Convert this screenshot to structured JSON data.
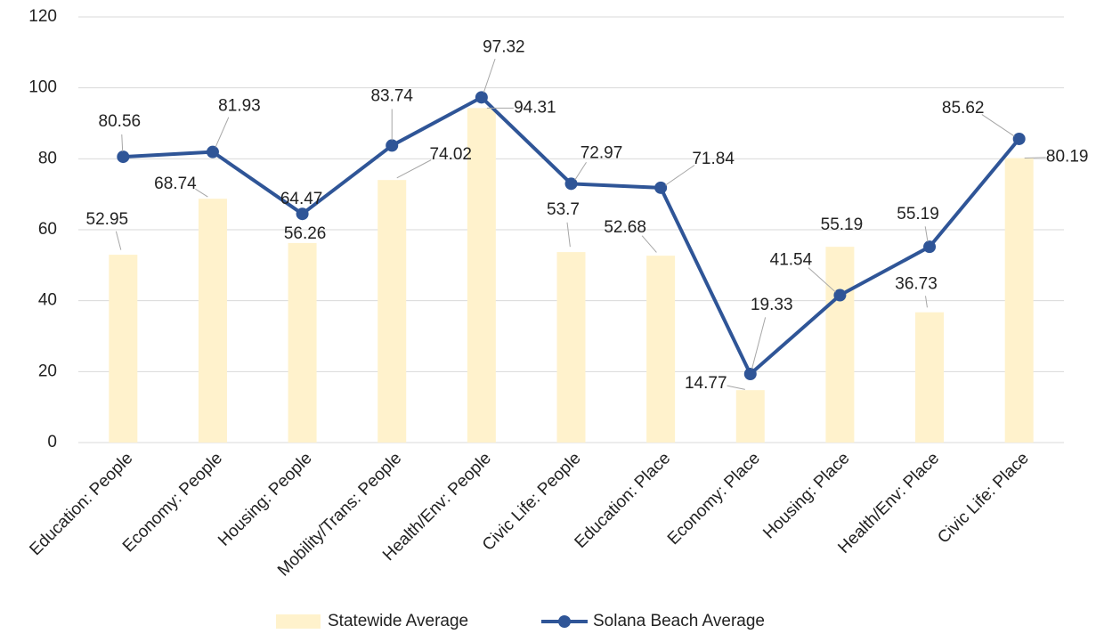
{
  "chart_data": {
    "type": "bar-line",
    "categories": [
      "Education: People",
      "Economy: People",
      "Housing: People",
      "Mobility/Trans: People",
      "Health/Env: People",
      "Civic Life: People",
      "Education: Place",
      "Economy: Place",
      "Housing: Place",
      "Health/Env: Place",
      "Civic Life: Place"
    ],
    "series": [
      {
        "name": "Statewide Average",
        "type": "bar",
        "color": "#fff2cc",
        "values": [
          52.95,
          68.74,
          56.26,
          74.02,
          94.31,
          53.7,
          52.68,
          14.77,
          55.19,
          36.73,
          80.19
        ]
      },
      {
        "name": "Solana Beach Average",
        "type": "line",
        "color": "#2f5597",
        "values": [
          80.56,
          81.93,
          64.47,
          83.74,
          97.32,
          72.97,
          71.84,
          19.33,
          41.54,
          55.19,
          85.62
        ]
      }
    ],
    "ylim": [
      0,
      120
    ],
    "yticks": [
      0,
      20,
      40,
      60,
      80,
      100,
      120
    ],
    "grid": true,
    "legend": "bottom"
  }
}
